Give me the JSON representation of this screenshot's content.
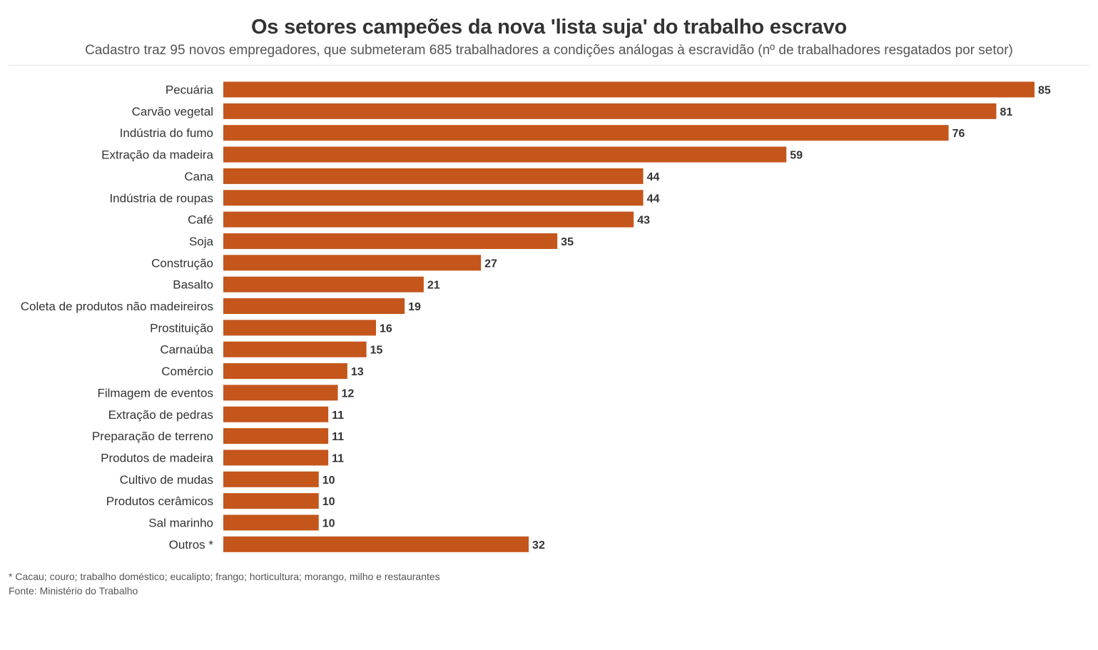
{
  "chart_data": {
    "type": "bar",
    "orientation": "horizontal",
    "title": "Os setores campeões da nova 'lista suja' do trabalho escravo",
    "subtitle": "Cadastro traz 95 novos empregadores, que submeteram 685 trabalhadores a condições análogas à escravidão (nº de trabalhadores resgatados por setor)",
    "categories": [
      "Pecuária",
      "Carvão vegetal",
      "Indústria do fumo",
      "Extração da madeira",
      "Cana",
      "Indústria de roupas",
      "Café",
      "Soja",
      "Construção",
      "Basalto",
      "Coleta de produtos não madeireiros",
      "Prostituição",
      "Carnaúba",
      "Comércio",
      "Filmagem de eventos",
      "Extração de pedras",
      "Preparação de terreno",
      "Produtos de madeira",
      "Cultivo de mudas",
      "Produtos cerâmicos",
      "Sal marinho",
      "Outros *"
    ],
    "values": [
      85,
      81,
      76,
      59,
      44,
      44,
      43,
      35,
      27,
      21,
      19,
      16,
      15,
      13,
      12,
      11,
      11,
      11,
      10,
      10,
      10,
      32
    ],
    "xlim": [
      0,
      85
    ],
    "xlabel": "",
    "ylabel": "",
    "grid": false,
    "bar_color": "#c4561c",
    "footnote": "* Cacau; couro; trabalho doméstico; eucalipto; frango; horticultura; morango, milho e restaurantes",
    "source": "Fonte: Ministério do Trabalho"
  }
}
